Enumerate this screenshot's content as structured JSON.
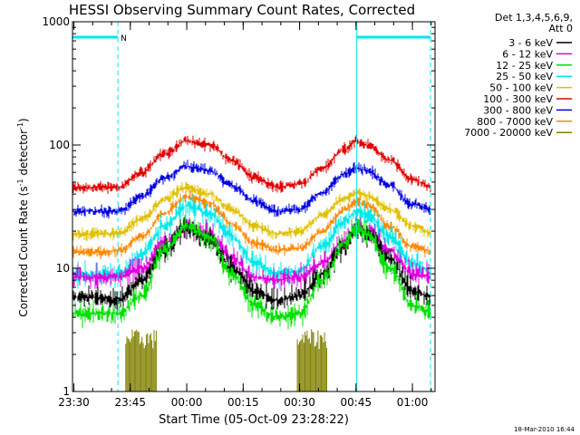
{
  "chart_data": {
    "type": "line",
    "title": "HESSI Observing Summary Count Rates, Corrected",
    "xlabel": "Start Time (05-Oct-09 23:28:22)",
    "ylabel_parts": [
      "Corrected Count Rate (s",
      "-1",
      " detector",
      "-1",
      ")"
    ],
    "yscale": "log",
    "ylim": [
      1,
      1000
    ],
    "xlim_minutes": [
      -0.37,
      96.0
    ],
    "xticks": [
      {
        "label": "23:30",
        "min": 0
      },
      {
        "label": "23:45",
        "min": 15
      },
      {
        "label": "00:00",
        "min": 30
      },
      {
        "label": "00:15",
        "min": 45
      },
      {
        "label": "00:30",
        "min": 60
      },
      {
        "label": "00:45",
        "min": 75
      },
      {
        "label": "01:00",
        "min": 90
      }
    ],
    "yticks": [
      {
        "label": "1",
        "value": 1
      },
      {
        "label": "10",
        "value": 10
      },
      {
        "label": "100",
        "value": 100
      },
      {
        "label": "1000",
        "value": 1000
      }
    ],
    "legend_header": [
      "Det 1,3,4,5,6,9,",
      "Att 0"
    ],
    "legend_position": "right",
    "series": [
      {
        "name": "3 - 6 keV",
        "color": "#000000",
        "profile": [
          [
            0,
            5.8
          ],
          [
            6,
            5.8
          ],
          [
            12,
            5.5
          ],
          [
            18,
            8
          ],
          [
            24,
            14
          ],
          [
            30,
            21
          ],
          [
            36,
            17
          ],
          [
            42,
            10
          ],
          [
            48,
            6.5
          ],
          [
            54,
            5.5
          ],
          [
            60,
            6
          ],
          [
            66,
            9
          ],
          [
            72,
            15
          ],
          [
            75,
            21
          ],
          [
            78,
            19
          ],
          [
            84,
            12
          ],
          [
            90,
            6.5
          ],
          [
            96,
            5.8
          ]
        ]
      },
      {
        "name": "6 - 12 keV",
        "color": "#e000e0",
        "profile": [
          [
            0,
            8.5
          ],
          [
            6,
            8.5
          ],
          [
            12,
            8.5
          ],
          [
            18,
            10
          ],
          [
            24,
            16
          ],
          [
            30,
            22
          ],
          [
            36,
            19
          ],
          [
            42,
            12
          ],
          [
            48,
            8.5
          ],
          [
            54,
            8
          ],
          [
            60,
            8.5
          ],
          [
            66,
            11
          ],
          [
            72,
            17
          ],
          [
            75,
            22
          ],
          [
            78,
            20
          ],
          [
            84,
            14
          ],
          [
            90,
            9
          ],
          [
            96,
            8.5
          ]
        ]
      },
      {
        "name": "12 - 25 keV",
        "color": "#00e000",
        "profile": [
          [
            0,
            4.3
          ],
          [
            6,
            4.3
          ],
          [
            12,
            4.3
          ],
          [
            18,
            6
          ],
          [
            24,
            14
          ],
          [
            30,
            22
          ],
          [
            36,
            18
          ],
          [
            42,
            9
          ],
          [
            48,
            5
          ],
          [
            54,
            4
          ],
          [
            60,
            4.3
          ],
          [
            66,
            8
          ],
          [
            72,
            16
          ],
          [
            75,
            22
          ],
          [
            78,
            19
          ],
          [
            84,
            10
          ],
          [
            90,
            5
          ],
          [
            96,
            4.3
          ]
        ]
      },
      {
        "name": "25 - 50 keV",
        "color": "#00e8e8",
        "profile": [
          [
            0,
            8.8
          ],
          [
            6,
            8.8
          ],
          [
            12,
            9
          ],
          [
            18,
            13
          ],
          [
            24,
            22
          ],
          [
            30,
            32
          ],
          [
            36,
            28
          ],
          [
            42,
            18
          ],
          [
            48,
            11
          ],
          [
            54,
            9
          ],
          [
            60,
            9.5
          ],
          [
            66,
            15
          ],
          [
            72,
            24
          ],
          [
            75,
            29
          ],
          [
            78,
            27
          ],
          [
            84,
            18
          ],
          [
            90,
            11
          ],
          [
            96,
            9
          ]
        ]
      },
      {
        "name": "50 - 100 keV",
        "color": "#e0c000",
        "profile": [
          [
            0,
            19
          ],
          [
            6,
            19
          ],
          [
            12,
            19
          ],
          [
            18,
            25
          ],
          [
            24,
            36
          ],
          [
            30,
            45
          ],
          [
            36,
            40
          ],
          [
            42,
            30
          ],
          [
            48,
            22
          ],
          [
            54,
            19
          ],
          [
            60,
            20
          ],
          [
            66,
            27
          ],
          [
            72,
            37
          ],
          [
            75,
            41
          ],
          [
            78,
            39
          ],
          [
            84,
            30
          ],
          [
            90,
            22
          ],
          [
            96,
            19
          ]
        ]
      },
      {
        "name": "100 - 300 keV",
        "color": "#e00000",
        "profile": [
          [
            0,
            45
          ],
          [
            6,
            45
          ],
          [
            12,
            46
          ],
          [
            18,
            60
          ],
          [
            24,
            85
          ],
          [
            30,
            108
          ],
          [
            36,
            100
          ],
          [
            42,
            75
          ],
          [
            48,
            55
          ],
          [
            54,
            46
          ],
          [
            60,
            48
          ],
          [
            66,
            65
          ],
          [
            72,
            92
          ],
          [
            75,
            107
          ],
          [
            78,
            100
          ],
          [
            84,
            75
          ],
          [
            90,
            52
          ],
          [
            96,
            45
          ]
        ]
      },
      {
        "name": "300 - 800 keV",
        "color": "#0000e0",
        "profile": [
          [
            0,
            29
          ],
          [
            6,
            29
          ],
          [
            12,
            29
          ],
          [
            18,
            38
          ],
          [
            24,
            54
          ],
          [
            30,
            67
          ],
          [
            36,
            62
          ],
          [
            42,
            47
          ],
          [
            48,
            35
          ],
          [
            54,
            29
          ],
          [
            60,
            30
          ],
          [
            66,
            41
          ],
          [
            72,
            58
          ],
          [
            75,
            65
          ],
          [
            78,
            62
          ],
          [
            84,
            47
          ],
          [
            90,
            33
          ],
          [
            96,
            29
          ]
        ]
      },
      {
        "name": "800 - 7000 keV",
        "color": "#ff8800",
        "profile": [
          [
            0,
            13.5
          ],
          [
            6,
            13.5
          ],
          [
            12,
            14
          ],
          [
            18,
            18
          ],
          [
            24,
            28
          ],
          [
            30,
            38
          ],
          [
            36,
            34
          ],
          [
            42,
            23
          ],
          [
            48,
            16
          ],
          [
            54,
            14
          ],
          [
            60,
            14.5
          ],
          [
            66,
            20
          ],
          [
            72,
            30
          ],
          [
            75,
            35
          ],
          [
            78,
            33
          ],
          [
            84,
            22
          ],
          [
            90,
            15
          ],
          [
            96,
            13.5
          ]
        ]
      },
      {
        "name": "7000 - 20000 keV",
        "color": "#808000"
      }
    ],
    "spikes": [
      {
        "series": "7000 - 20000 keV",
        "from_min": 13.8,
        "to_min": 22.1,
        "level": 2.2
      },
      {
        "series": "7000 - 20000 keV",
        "from_min": 59.4,
        "to_min": 67.3,
        "level": 2.2
      }
    ],
    "markers": {
      "solid_lines_min": [
        -0.37,
        75.2
      ],
      "dashed_lines_min": [
        11.7,
        94.8
      ],
      "bars": [
        {
          "from_min": -0.37,
          "to_min": 11.7,
          "label": ""
        },
        {
          "from_min": 11.7,
          "to_min": 14.0,
          "label": "N"
        },
        {
          "from_min": 75.2,
          "to_min": 94.8,
          "label": ""
        }
      ]
    }
  },
  "footer": {
    "timestamp": "18-Mar-2010 16:44"
  }
}
